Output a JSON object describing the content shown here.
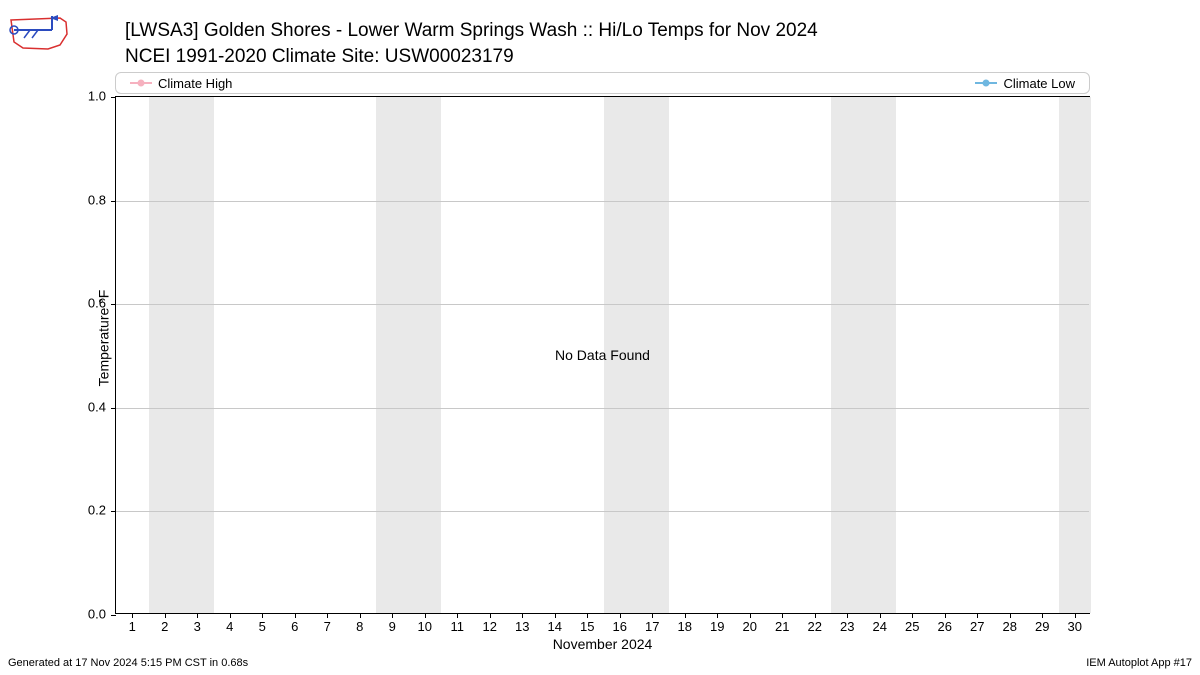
{
  "title": {
    "line1": "[LWSA3] Golden Shores - Lower Warm Springs Wash :: Hi/Lo Temps for Nov 2024",
    "line2": "NCEI 1991-2020 Climate Site: USW00023179"
  },
  "legend": {
    "high": "Climate High",
    "low": "Climate Low",
    "high_color": "#f6b1bf",
    "low_color": "#6fb7e0"
  },
  "chart": {
    "type": "line",
    "xlabel": "November 2024",
    "ylabel": "Temperature °F",
    "xlim": [
      0.5,
      30.5
    ],
    "ylim": [
      0.0,
      1.0
    ],
    "yticks": [
      0.0,
      0.2,
      0.4,
      0.6,
      0.8,
      1.0
    ],
    "xticks": [
      1,
      2,
      3,
      4,
      5,
      6,
      7,
      8,
      9,
      10,
      11,
      12,
      13,
      14,
      15,
      16,
      17,
      18,
      19,
      20,
      21,
      22,
      23,
      24,
      25,
      26,
      27,
      28,
      29,
      30
    ],
    "background_color": "#ffffff",
    "grid_color": "#c8c8c8",
    "border_color": "#000000",
    "weekend_band_color": "#e9e9e9",
    "weekend_bands": [
      [
        1.5,
        3.5
      ],
      [
        8.5,
        10.5
      ],
      [
        15.5,
        17.5
      ],
      [
        22.5,
        24.5
      ],
      [
        29.5,
        30.5
      ]
    ],
    "no_data_text": "No Data Found",
    "series": []
  },
  "footer": {
    "left": "Generated at 17 Nov 2024 5:15 PM CST in 0.68s",
    "right": "IEM Autoplot App #17"
  },
  "logo": {
    "name": "iem-logo",
    "outline_color": "#d92f2f",
    "accent_color": "#2b4bbf"
  }
}
